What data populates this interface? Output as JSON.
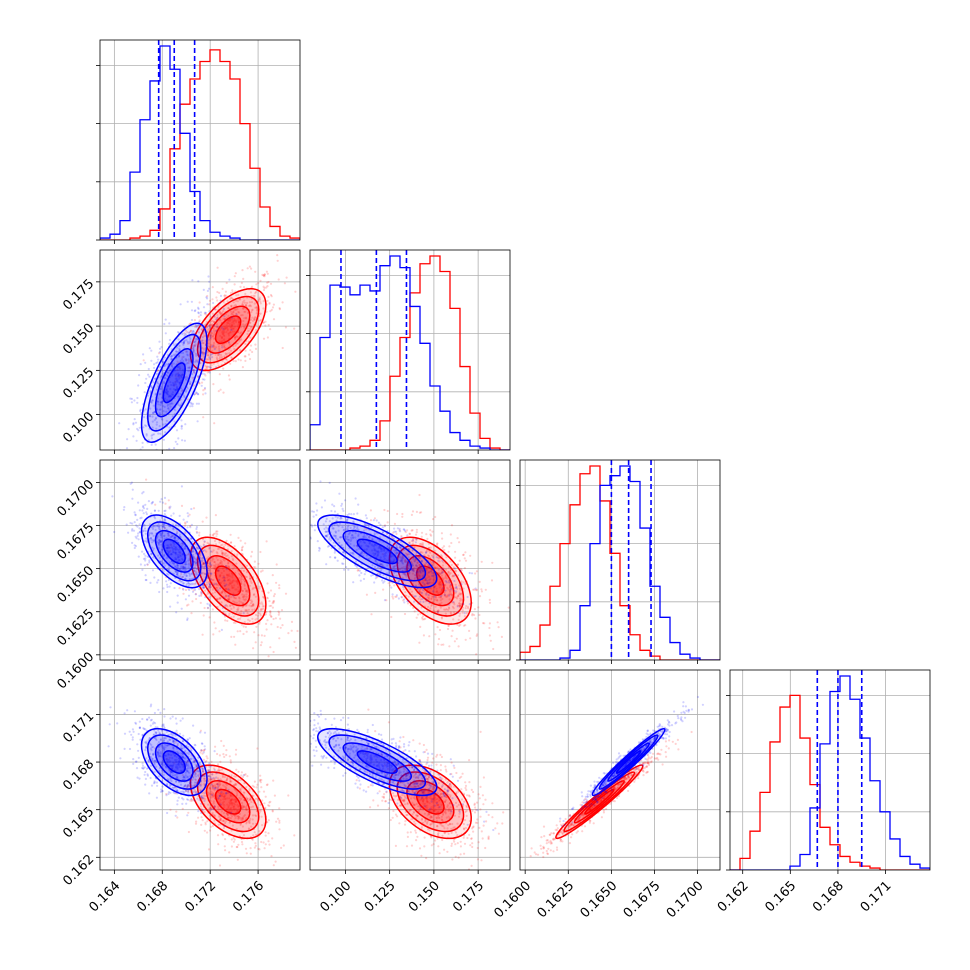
{
  "chart_data": {
    "type": "corner",
    "title": "",
    "grid": true,
    "colors": {
      "blue": "#0000ff",
      "red": "#ff0000"
    },
    "dimensions": 4,
    "axis_ticks": [
      {
        "labels": [
          "0.164",
          "0.168",
          "0.172",
          "0.176"
        ],
        "values": [
          0.164,
          0.168,
          0.172,
          0.176
        ],
        "range": [
          0.1628,
          0.1795
        ]
      },
      {
        "labels": [
          "0.100",
          "0.125",
          "0.150",
          "0.175"
        ],
        "values": [
          0.1,
          0.125,
          0.15,
          0.175
        ],
        "range": [
          0.08,
          0.193
        ]
      },
      {
        "labels": [
          "0.1600",
          "0.1625",
          "0.1650",
          "0.1675",
          "0.1700"
        ],
        "values": [
          0.16,
          0.1625,
          0.165,
          0.1675,
          0.17
        ],
        "range": [
          0.1597,
          0.1713
        ]
      },
      {
        "labels": [
          "0.162",
          "0.165",
          "0.168",
          "0.171"
        ],
        "values": [
          0.162,
          0.165,
          0.168,
          0.171
        ],
        "range": [
          0.1612,
          0.1738
        ]
      }
    ],
    "series": [
      {
        "color": "blue",
        "means": [
          0.169,
          0.118,
          0.166,
          0.168
        ],
        "stds": [
          0.0013,
          0.016,
          0.001,
          0.001
        ],
        "quantiles": [
          [
            0.1677,
            0.169,
            0.1707
          ],
          [
            0.0975,
            0.1175,
            0.1345
          ],
          [
            0.165,
            0.166,
            0.1673
          ],
          [
            0.1667,
            0.168,
            0.1695
          ]
        ]
      },
      {
        "color": "red",
        "means": [
          0.1735,
          0.148,
          0.1643,
          0.1655
        ],
        "stds": [
          0.0015,
          0.011,
          0.0012,
          0.0011
        ]
      }
    ],
    "histograms": [
      {
        "blue": [
          1,
          3,
          10,
          35,
          62,
          82,
          100,
          88,
          55,
          25,
          10,
          4,
          2,
          1,
          0,
          0,
          0,
          0,
          0,
          0
        ],
        "red": [
          0,
          0,
          0,
          1,
          2,
          5,
          16,
          47,
          70,
          83,
          92,
          98,
          92,
          83,
          60,
          37,
          17,
          7,
          2,
          1
        ]
      },
      {
        "blue": [
          13,
          58,
          85,
          84,
          80,
          85,
          82,
          95,
          100,
          94,
          74,
          55,
          33,
          20,
          9,
          5,
          2,
          1,
          0,
          0
        ],
        "red": [
          0,
          0,
          0,
          0,
          1,
          2,
          5,
          15,
          38,
          58,
          81,
          96,
          100,
          92,
          73,
          43,
          19,
          6,
          1,
          0
        ]
      },
      {
        "blue": [
          0,
          0,
          0,
          0,
          1,
          5,
          28,
          60,
          90,
          95,
          100,
          92,
          68,
          38,
          22,
          9,
          3,
          1,
          0,
          0
        ],
        "red": [
          4,
          7,
          18,
          38,
          60,
          80,
          96,
          100,
          82,
          55,
          28,
          13,
          5,
          2,
          0,
          0,
          0,
          0,
          0,
          0
        ]
      },
      {
        "blue": [
          0,
          0,
          0,
          0,
          0,
          0,
          2,
          8,
          32,
          65,
          92,
          100,
          88,
          68,
          46,
          30,
          16,
          7,
          3,
          1
        ],
        "red": [
          0,
          6,
          20,
          40,
          66,
          84,
          90,
          68,
          44,
          22,
          13,
          7,
          4,
          2,
          1,
          0,
          0,
          0,
          0,
          0
        ]
      }
    ],
    "correlations": {
      "blue": {
        "1-0": 0.7,
        "2-0": -0.55,
        "2-1": -0.75,
        "3-0": -0.5,
        "3-1": -0.75,
        "3-2": 0.97
      },
      "red": {
        "1-0": 0.6,
        "2-0": -0.55,
        "2-1": -0.5,
        "3-0": -0.5,
        "3-1": -0.45,
        "3-2": 0.97
      }
    }
  }
}
